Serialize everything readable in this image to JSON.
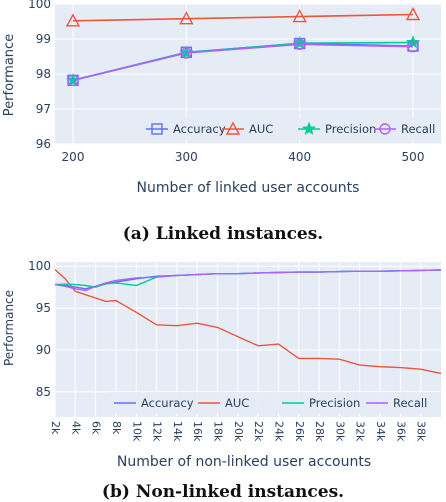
{
  "captions": [
    "(a) Linked instances.",
    "(b) Non-linked instances."
  ],
  "chart_data": [
    {
      "type": "line",
      "title": "",
      "xlabel": "Number of linked user accounts",
      "ylabel": "Performance",
      "x": [
        200,
        300,
        400,
        500
      ],
      "xticks": [
        "200",
        "300",
        "400",
        "500"
      ],
      "yticks": [
        96,
        97,
        98,
        99,
        100
      ],
      "ylim": [
        96,
        100
      ],
      "grid": true,
      "legend_position": "bottom-right",
      "series": [
        {
          "name": "Accuracy",
          "values": [
            97.82,
            98.62,
            98.87,
            98.8
          ],
          "color": "#636efa",
          "marker": "square"
        },
        {
          "name": "AUC",
          "values": [
            99.52,
            99.58,
            99.64,
            99.7
          ],
          "color": "#ef553b",
          "marker": "triangle"
        },
        {
          "name": "Precision",
          "values": [
            97.82,
            98.61,
            98.88,
            98.9
          ],
          "color": "#00cc96",
          "marker": "star"
        },
        {
          "name": "Recall",
          "values": [
            97.82,
            98.6,
            98.85,
            98.78
          ],
          "color": "#ab63fa",
          "marker": "circle"
        }
      ]
    },
    {
      "type": "line",
      "title": "",
      "xlabel": "Number of non-linked user accounts",
      "ylabel": "Performance",
      "x": [
        2000,
        3000,
        4000,
        5000,
        6000,
        7000,
        8000,
        10000,
        12000,
        14000,
        16000,
        18000,
        20000,
        22000,
        24000,
        26000,
        27000,
        28000,
        30000,
        32000,
        34000,
        36000,
        38000,
        40000
      ],
      "xlim": [
        2000,
        40000
      ],
      "xticks": [
        "2k",
        "4k",
        "6k",
        "8k",
        "10k",
        "12k",
        "14k",
        "16k",
        "18k",
        "20k",
        "22k",
        "24k",
        "26k",
        "28k",
        "30k",
        "32k",
        "34k",
        "36k",
        "38k"
      ],
      "xtick_values": [
        2000,
        4000,
        6000,
        8000,
        10000,
        12000,
        14000,
        16000,
        18000,
        20000,
        22000,
        24000,
        26000,
        28000,
        30000,
        32000,
        34000,
        36000,
        38000
      ],
      "yticks": [
        85,
        90,
        95,
        100
      ],
      "ylim": [
        82,
        100.5
      ],
      "grid": true,
      "legend_position": "bottom",
      "series": [
        {
          "name": "Accuracy",
          "color": "#636efa",
          "values": [
            97.8,
            97.7,
            97.5,
            97.3,
            97.6,
            97.9,
            98.1,
            98.5,
            98.8,
            98.9,
            99.0,
            99.1,
            99.1,
            99.2,
            99.25,
            99.3,
            99.3,
            99.3,
            99.35,
            99.4,
            99.4,
            99.45,
            99.5,
            99.55
          ]
        },
        {
          "name": "AUC",
          "color": "#ef553b",
          "values": [
            99.6,
            98.5,
            97.0,
            96.6,
            96.2,
            95.8,
            95.9,
            94.5,
            93.0,
            92.9,
            93.2,
            92.7,
            91.6,
            90.5,
            90.7,
            89.0,
            89.0,
            89.0,
            88.9,
            88.2,
            88.0,
            87.9,
            87.7,
            87.2
          ]
        },
        {
          "name": "Precision",
          "color": "#00cc96",
          "values": [
            97.8,
            97.85,
            97.8,
            97.7,
            97.5,
            97.9,
            98.0,
            97.7,
            98.7,
            98.9,
            99.0,
            99.1,
            99.1,
            99.2,
            99.25,
            99.3,
            99.3,
            99.3,
            99.35,
            99.4,
            99.4,
            99.45,
            99.5,
            99.55
          ]
        },
        {
          "name": "Recall",
          "color": "#ab63fa",
          "values": [
            97.8,
            97.6,
            97.3,
            97.1,
            97.6,
            98.0,
            98.3,
            98.6,
            98.7,
            98.9,
            99.0,
            99.1,
            99.1,
            99.2,
            99.25,
            99.3,
            99.3,
            99.3,
            99.35,
            99.4,
            99.4,
            99.45,
            99.5,
            99.55
          ]
        }
      ]
    }
  ]
}
